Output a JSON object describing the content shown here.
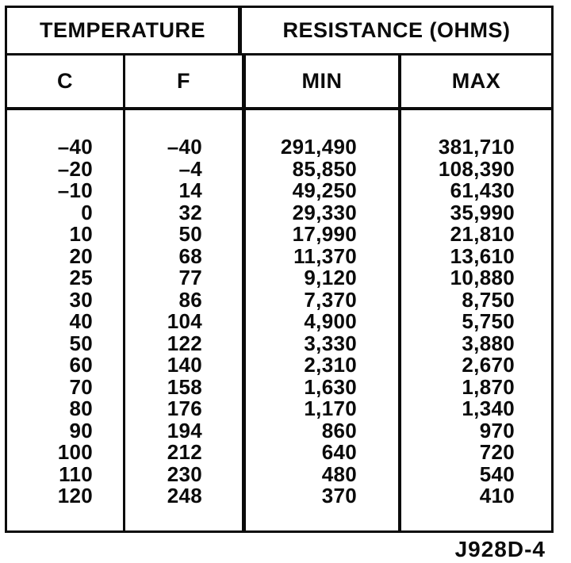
{
  "colors": {
    "ink": "#0b0b0b",
    "paper": "#ffffff"
  },
  "table": {
    "group_headers": [
      "TEMPERATURE",
      "RESISTANCE (OHMS)"
    ],
    "col_headers": [
      "C",
      "F",
      "MIN",
      "MAX"
    ],
    "rows": [
      {
        "c": "–40",
        "f": "–40",
        "min": "291,490",
        "max": "381,710"
      },
      {
        "c": "–20",
        "f": "–4",
        "min": "85,850",
        "max": "108,390"
      },
      {
        "c": "–10",
        "f": "14",
        "min": "49,250",
        "max": "61,430"
      },
      {
        "c": "0",
        "f": "32",
        "min": "29,330",
        "max": "35,990"
      },
      {
        "c": "10",
        "f": "50",
        "min": "17,990",
        "max": "21,810"
      },
      {
        "c": "20",
        "f": "68",
        "min": "11,370",
        "max": "13,610"
      },
      {
        "c": "25",
        "f": "77",
        "min": "9,120",
        "max": "10,880"
      },
      {
        "c": "30",
        "f": "86",
        "min": "7,370",
        "max": "8,750"
      },
      {
        "c": "40",
        "f": "104",
        "min": "4,900",
        "max": "5,750"
      },
      {
        "c": "50",
        "f": "122",
        "min": "3,330",
        "max": "3,880"
      },
      {
        "c": "60",
        "f": "140",
        "min": "2,310",
        "max": "2,670"
      },
      {
        "c": "70",
        "f": "158",
        "min": "1,630",
        "max": "1,870"
      },
      {
        "c": "80",
        "f": "176",
        "min": "1,170",
        "max": "1,340"
      },
      {
        "c": "90",
        "f": "194",
        "min": "860",
        "max": "970"
      },
      {
        "c": "100",
        "f": "212",
        "min": "640",
        "max": "720"
      },
      {
        "c": "110",
        "f": "230",
        "min": "480",
        "max": "540"
      },
      {
        "c": "120",
        "f": "248",
        "min": "370",
        "max": "410"
      }
    ]
  },
  "caption": "J928D-4"
}
